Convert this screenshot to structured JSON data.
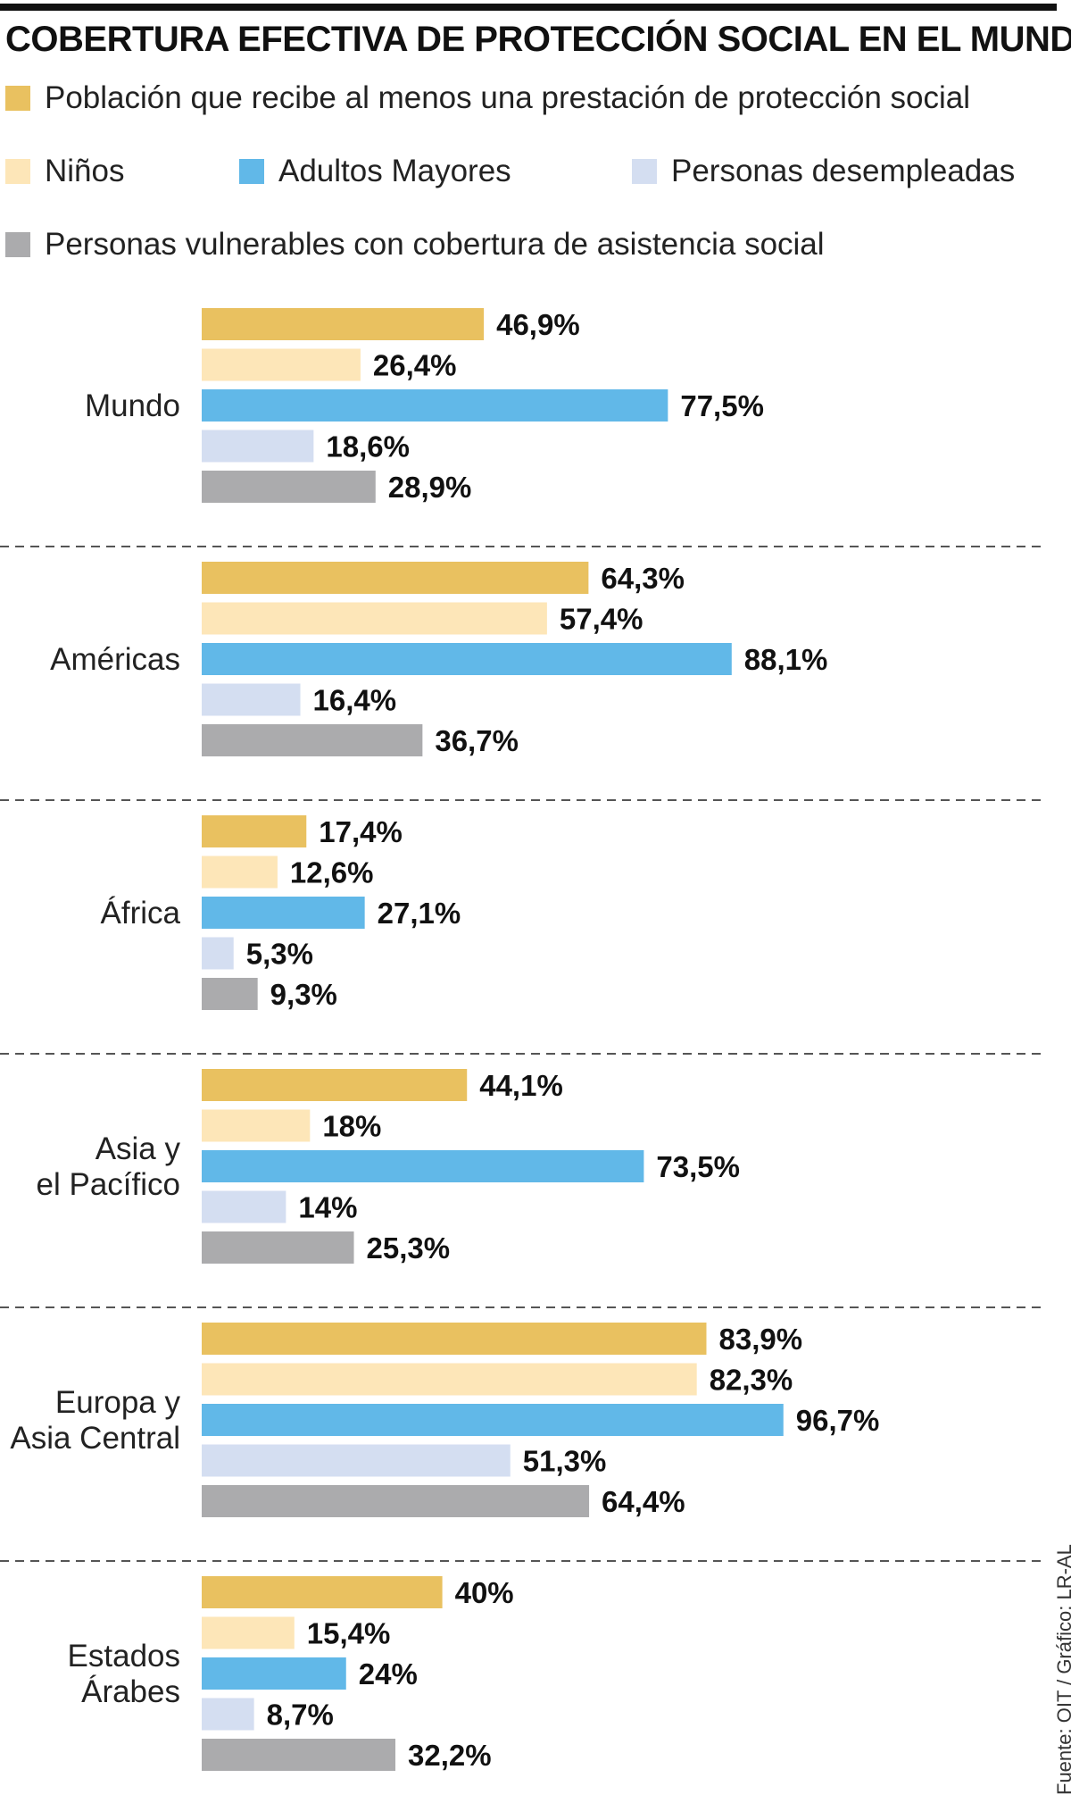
{
  "title": "COBERTURA EFECTIVA DE PROTECCIÓN SOCIAL EN EL MUNDO",
  "source": "Fuente: OIT / Gráfico: LR-AL",
  "chart_data": {
    "type": "bar",
    "orientation": "horizontal",
    "title": "COBERTURA EFECTIVA DE PROTECCIÓN SOCIAL EN EL MUNDO",
    "xlim": [
      0,
      100
    ],
    "unit": "%",
    "categories": [
      [
        "Mundo"
      ],
      [
        "Américas"
      ],
      [
        "África"
      ],
      [
        "Asia y",
        "el Pacífico"
      ],
      [
        "Europa y",
        "Asia Central"
      ],
      [
        "Estados",
        "Árabes"
      ]
    ],
    "series": [
      {
        "name": "Población que recibe al menos una prestación de protección social",
        "color": "#E9C160",
        "values": [
          46.9,
          64.3,
          17.4,
          44.1,
          83.9,
          40
        ],
        "labels": [
          "46,9%",
          "64,3%",
          "17,4%",
          "44,1%",
          "83,9%",
          "40%"
        ]
      },
      {
        "name": "Niños",
        "color": "#FDE6B8",
        "values": [
          26.4,
          57.4,
          12.6,
          18,
          82.3,
          15.4
        ],
        "labels": [
          "26,4%",
          "57,4%",
          "12,6%",
          "18%",
          "82,3%",
          "15,4%"
        ]
      },
      {
        "name": "Adultos Mayores",
        "color": "#61B8E8",
        "values": [
          77.5,
          88.1,
          27.1,
          73.5,
          96.7,
          24
        ],
        "labels": [
          "77,5%",
          "88,1%",
          "27,1%",
          "73,5%",
          "96,7%",
          "24%"
        ]
      },
      {
        "name": "Personas desempleadas",
        "color": "#D4DEF1",
        "values": [
          18.6,
          16.4,
          5.3,
          14,
          51.3,
          8.7
        ],
        "labels": [
          "18,6%",
          "16,4%",
          "5,3%",
          "14%",
          "51,3%",
          "8,7%"
        ]
      },
      {
        "name": "Personas vulnerables con cobertura de asistencia social",
        "color": "#ABABAD",
        "values": [
          28.9,
          36.7,
          9.3,
          25.3,
          64.4,
          32.2
        ],
        "labels": [
          "28,9%",
          "36,7%",
          "9,3%",
          "25,3%",
          "64,4%",
          "32,2%"
        ]
      }
    ]
  }
}
